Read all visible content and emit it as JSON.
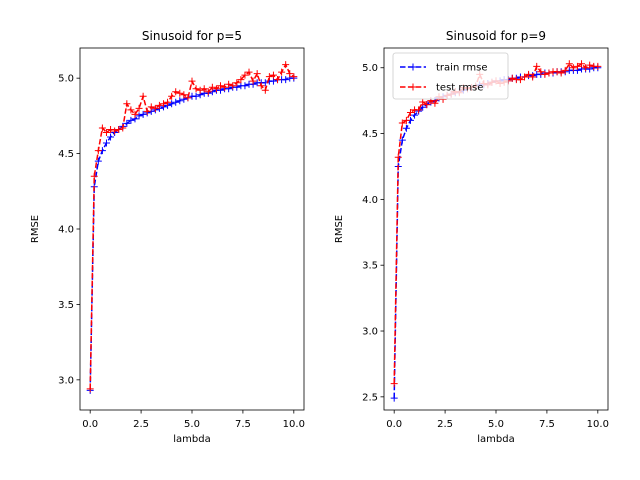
{
  "chart_data": [
    {
      "type": "line",
      "title": "Sinusoid for p=5",
      "xlabel": "lambda",
      "ylabel": "RMSE",
      "xlim": [
        -0.5,
        10.5
      ],
      "ylim": [
        2.8,
        5.2
      ],
      "xticks": [
        0.0,
        2.5,
        5.0,
        7.5,
        10.0
      ],
      "xtick_labels": [
        "0.0",
        "2.5",
        "5.0",
        "7.5",
        "10.0"
      ],
      "yticks": [
        3.0,
        3.5,
        4.0,
        4.5,
        5.0
      ],
      "ytick_labels": [
        "3.0",
        "3.5",
        "4.0",
        "4.5",
        "5.0"
      ],
      "grid": false,
      "legend": null,
      "x": [
        0.0,
        0.2,
        0.4,
        0.6,
        0.8,
        1.0,
        1.2,
        1.4,
        1.6,
        1.8,
        2.0,
        2.2,
        2.4,
        2.6,
        2.8,
        3.0,
        3.2,
        3.4,
        3.6,
        3.8,
        4.0,
        4.2,
        4.4,
        4.6,
        4.8,
        5.0,
        5.2,
        5.4,
        5.6,
        5.8,
        6.0,
        6.2,
        6.4,
        6.6,
        6.8,
        7.0,
        7.2,
        7.4,
        7.6,
        7.8,
        8.0,
        8.2,
        8.4,
        8.6,
        8.8,
        9.0,
        9.2,
        9.4,
        9.6,
        9.8,
        10.0
      ],
      "series": [
        {
          "name": "train rmse",
          "color": "#0000ff",
          "linestyle": "dashed",
          "marker": "+",
          "values": [
            2.93,
            4.28,
            4.45,
            4.52,
            4.57,
            4.61,
            4.64,
            4.66,
            4.68,
            4.7,
            4.72,
            4.73,
            4.75,
            4.76,
            4.77,
            4.78,
            4.79,
            4.8,
            4.81,
            4.82,
            4.83,
            4.84,
            4.85,
            4.86,
            4.87,
            4.88,
            4.88,
            4.89,
            4.9,
            4.9,
            4.91,
            4.92,
            4.92,
            4.93,
            4.93,
            4.94,
            4.94,
            4.95,
            4.95,
            4.96,
            4.96,
            4.97,
            4.97,
            4.97,
            4.98,
            4.98,
            4.99,
            4.99,
            4.99,
            5.0,
            5.0
          ]
        },
        {
          "name": "test rmse",
          "color": "#ff0000",
          "linestyle": "dashed",
          "marker": "+",
          "values": [
            2.94,
            4.35,
            4.52,
            4.67,
            4.64,
            4.66,
            4.65,
            4.66,
            4.67,
            4.83,
            4.79,
            4.76,
            4.8,
            4.88,
            4.78,
            4.81,
            4.8,
            4.82,
            4.83,
            4.84,
            4.88,
            4.91,
            4.9,
            4.89,
            4.87,
            4.98,
            4.93,
            4.92,
            4.93,
            4.91,
            4.94,
            4.93,
            4.95,
            4.94,
            4.96,
            4.95,
            4.97,
            4.99,
            5.02,
            5.04,
            4.98,
            5.03,
            4.95,
            4.92,
            5.01,
            5.02,
            4.99,
            5.04,
            5.09,
            5.03,
            5.01
          ]
        }
      ]
    },
    {
      "type": "line",
      "title": "Sinusoid for p=9",
      "xlabel": "lambda",
      "ylabel": "RMSE",
      "xlim": [
        -0.5,
        10.5
      ],
      "ylim": [
        2.4,
        5.15
      ],
      "xticks": [
        0.0,
        2.5,
        5.0,
        7.5,
        10.0
      ],
      "xtick_labels": [
        "0.0",
        "2.5",
        "5.0",
        "7.5",
        "10.0"
      ],
      "yticks": [
        2.5,
        3.0,
        3.5,
        4.0,
        4.5,
        5.0
      ],
      "ytick_labels": [
        "2.5",
        "3.0",
        "3.5",
        "4.0",
        "4.5",
        "5.0"
      ],
      "grid": false,
      "legend": "top-left",
      "x": [
        0.0,
        0.2,
        0.4,
        0.6,
        0.8,
        1.0,
        1.2,
        1.4,
        1.6,
        1.8,
        2.0,
        2.2,
        2.4,
        2.6,
        2.8,
        3.0,
        3.2,
        3.4,
        3.6,
        3.8,
        4.0,
        4.2,
        4.4,
        4.6,
        4.8,
        5.0,
        5.2,
        5.4,
        5.6,
        5.8,
        6.0,
        6.2,
        6.4,
        6.6,
        6.8,
        7.0,
        7.2,
        7.4,
        7.6,
        7.8,
        8.0,
        8.2,
        8.4,
        8.6,
        8.8,
        9.0,
        9.2,
        9.4,
        9.6,
        9.8,
        10.0
      ],
      "series": [
        {
          "name": "train rmse",
          "color": "#0000ff",
          "linestyle": "dashed",
          "marker": "+",
          "values": [
            2.49,
            4.25,
            4.45,
            4.54,
            4.6,
            4.64,
            4.67,
            4.7,
            4.72,
            4.74,
            4.75,
            4.77,
            4.78,
            4.79,
            4.8,
            4.81,
            4.82,
            4.83,
            4.84,
            4.85,
            4.86,
            4.87,
            4.87,
            4.88,
            4.89,
            4.9,
            4.9,
            4.91,
            4.91,
            4.92,
            4.92,
            4.93,
            4.93,
            4.94,
            4.94,
            4.95,
            4.95,
            4.96,
            4.96,
            4.96,
            4.97,
            4.97,
            4.97,
            4.98,
            4.98,
            4.98,
            4.99,
            4.99,
            4.99,
            5.0,
            5.0
          ]
        },
        {
          "name": "test rmse",
          "color": "#ff0000",
          "linestyle": "dashed",
          "marker": "+",
          "values": [
            2.6,
            4.32,
            4.58,
            4.6,
            4.66,
            4.68,
            4.68,
            4.74,
            4.72,
            4.75,
            4.73,
            4.78,
            4.76,
            4.79,
            4.8,
            4.82,
            4.81,
            4.85,
            4.84,
            4.85,
            4.86,
            4.95,
            4.88,
            4.87,
            4.89,
            4.9,
            4.88,
            4.89,
            4.9,
            4.92,
            4.91,
            4.91,
            4.93,
            4.95,
            4.93,
            5.01,
            4.97,
            4.95,
            4.96,
            4.97,
            4.97,
            4.96,
            4.98,
            5.03,
            5.0,
            5.01,
            5.03,
            5.0,
            5.02,
            5.01,
            5.01
          ]
        }
      ]
    }
  ]
}
